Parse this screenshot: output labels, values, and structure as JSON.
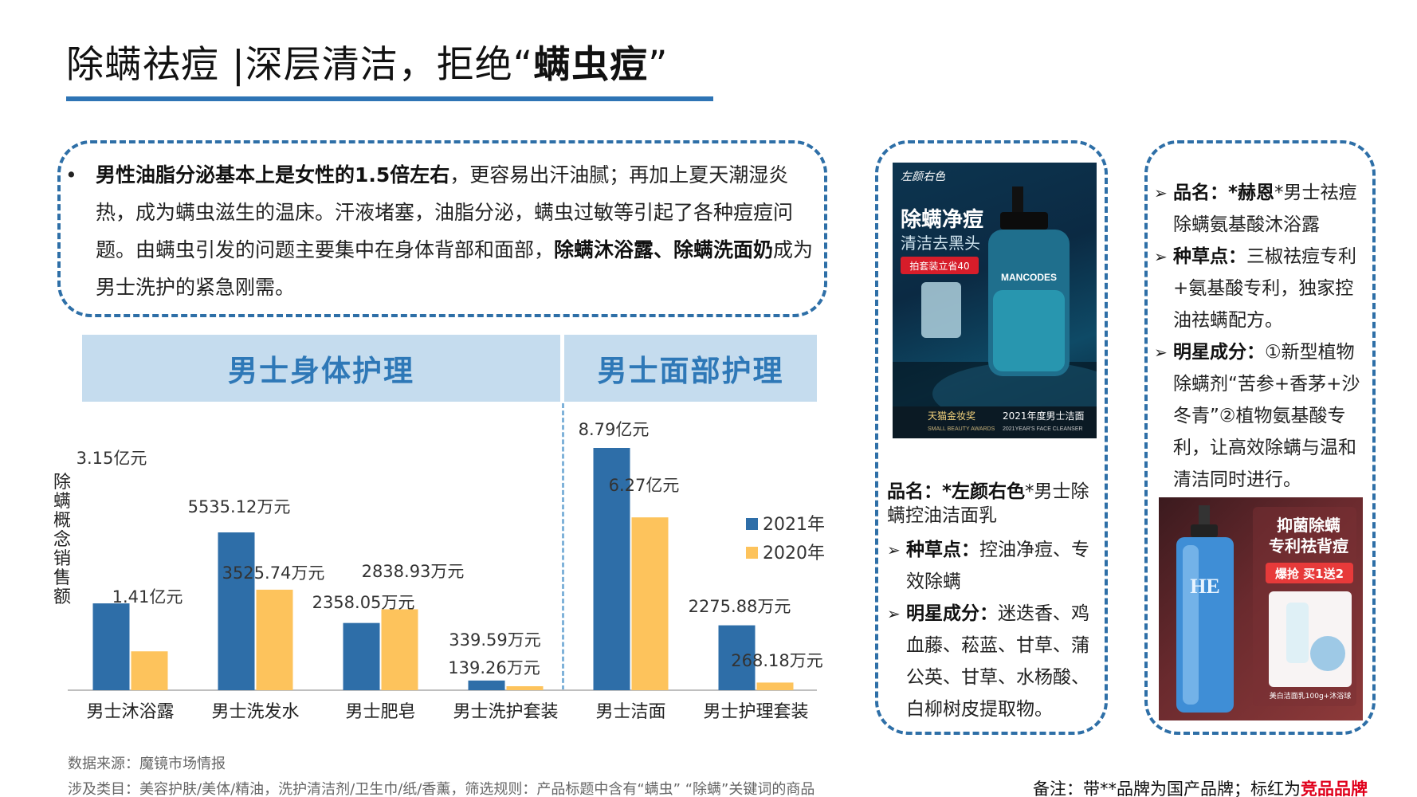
{
  "title": {
    "prefix": "除螨祛痘 |深层清洁，拒绝“",
    "bold": "螨虫痘",
    "suffix": "”"
  },
  "intro": {
    "bullet": "•",
    "bold1": "男性油脂分泌基本上是女性的1.5倍左右",
    "text1": "，更容易出汗油腻；再加上夏天潮湿炎热，成为螨虫滋生的温床。汗液堵塞，油脂分泌，螨虫过敏等引起了各种痘痘问题。由螨虫引发的问题主要集中在身体背部和面部，",
    "bold2": "除螨沐浴露、除螨洗面奶",
    "text2": "成为男士洗护的紧急刚需。"
  },
  "headers": {
    "body": "男士身体护理",
    "face": "男士面部护理"
  },
  "chart_data": {
    "type": "bar",
    "ylabel": "除螨概念销售额",
    "categories": [
      "男士沐浴露",
      "男士洗发水",
      "男士肥皂",
      "男士洗护套装",
      "男士洁面",
      "男士护理套装"
    ],
    "unit": "万元",
    "series": [
      {
        "name": "2021年",
        "color": "#2e6ea8",
        "values": [
          31500,
          5535.12,
          2358.05,
          339.59,
          87900,
          2275.88
        ],
        "labels": [
          "3.15亿元",
          "5535.12万元",
          "2358.05万元",
          "339.59万元",
          "8.79亿元",
          "2275.88万元"
        ]
      },
      {
        "name": "2020年",
        "color": "#fdc35c",
        "values": [
          14100,
          3525.74,
          2838.93,
          139.26,
          62700,
          268.18
        ],
        "labels": [
          "1.41亿元",
          "3525.74万元",
          "2838.93万元",
          "139.26万元",
          "6.27亿元",
          "268.18万元"
        ]
      }
    ]
  },
  "product1": {
    "name_label": "品名：",
    "name_bold": "*左颜右色",
    "name_rest": "*男士除螨控油洁面乳",
    "arrow": "➢",
    "seed_label": "种草点：",
    "seed_text": "控油净痘、专效除螨",
    "ing_label": "明星成分：",
    "ing_text": "迷迭香、鸡血藤、菘蓝、甘草、蒲公英、甘草、水杨酸、白柳树皮提取物。",
    "img": {
      "brand": "左颜右色",
      "headline": "除螨净痘",
      "subline": "清洁去黑头",
      "promo": "拍套装立省40",
      "bottle_label": "MANCODES",
      "award": "天猫金妆奖",
      "award_en": "SMALL BEAUTY AWARDS",
      "award_year": "2021年度男士洁面",
      "award_year_en": "2021YEAR'S FACE CLEANSER"
    }
  },
  "product2": {
    "arrow": "➢",
    "name_label": "品名：",
    "name_bold": "*赫恩",
    "name_rest": "*男士祛痘除螨氨基酸沐浴露",
    "seed_label": "种草点：",
    "seed_text": "三椒祛痘专利+氨基酸专利，独家控油祛螨配方。",
    "ing_label": "明星成分：",
    "ing_text": "①新型植物除螨剂“苦参+香茅+沙冬青”②植物氨基酸专利，让高效除螨与温和清洁同时进行。",
    "img": {
      "headline1": "抑菌除螨",
      "headline2": "专利祛背痘",
      "promo": "爆抢 买1送2",
      "bottle_label": "HE",
      "caption": "美白洁面乳100g+沐浴球"
    }
  },
  "footer": {
    "source": "数据来源：魔镜市场情报",
    "scope": "涉及类目：美容护肤/美体/精油，洗护清洁剂/卫生巾/纸/香薰，筛选规则：产品标题中含有“螨虫” “除螨”关键词的商品",
    "note_prefix": "备注：带**品牌为国产品牌；标红为",
    "note_red": "竞品品牌"
  }
}
